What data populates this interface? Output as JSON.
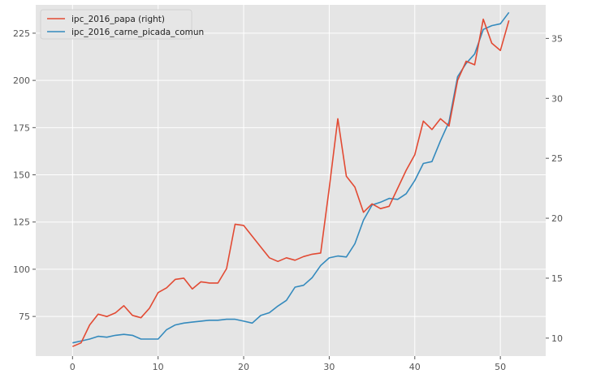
{
  "chart_data": {
    "type": "line",
    "title": "",
    "xlabel": "",
    "ylabel": "",
    "ylabel_right": "",
    "grid": true,
    "legend_position": "top-left",
    "x": [
      0,
      1,
      2,
      3,
      4,
      5,
      6,
      7,
      8,
      9,
      10,
      11,
      12,
      13,
      14,
      15,
      16,
      17,
      18,
      19,
      20,
      21,
      22,
      23,
      24,
      25,
      26,
      27,
      28,
      29,
      30,
      31,
      32,
      33,
      34,
      35,
      36,
      37,
      38,
      39,
      40,
      41,
      42,
      43,
      44,
      45,
      46,
      47,
      48,
      49,
      50,
      51
    ],
    "xlim": [
      -4.3,
      55.3
    ],
    "xticks": [
      0,
      10,
      20,
      30,
      40,
      50
    ],
    "ylim_left": [
      54,
      240
    ],
    "yticks_left": [
      75,
      100,
      125,
      150,
      175,
      200,
      225
    ],
    "ylim_right": [
      8.5,
      37.8
    ],
    "yticks_right": [
      10,
      15,
      20,
      25,
      30,
      35
    ],
    "series": [
      {
        "name": "ipc_2016_papa (right)",
        "axis": "right",
        "color": "#E24A33",
        "values": [
          9.3,
          9.6,
          11.1,
          12.0,
          11.8,
          12.1,
          12.7,
          11.9,
          11.7,
          12.5,
          13.8,
          14.2,
          14.9,
          15.0,
          14.1,
          14.7,
          14.6,
          14.6,
          15.8,
          19.5,
          19.4,
          18.5,
          17.6,
          16.7,
          16.4,
          16.7,
          16.5,
          16.8,
          17.0,
          17.1,
          22.5,
          28.3,
          23.5,
          22.6,
          20.5,
          21.2,
          20.8,
          21.0,
          22.5,
          24.0,
          25.3,
          28.1,
          27.4,
          28.3,
          27.7,
          31.5,
          33.1,
          32.8,
          36.6,
          34.6,
          34.0,
          36.5
        ]
      },
      {
        "name": "ipc_2016_carne_picada_comun",
        "axis": "left",
        "color": "#348ABD",
        "values": [
          61,
          62,
          63,
          64.5,
          64,
          65,
          65.5,
          65,
          63,
          63,
          63,
          68,
          70.5,
          71.5,
          72,
          72.5,
          73,
          73,
          73.5,
          73.5,
          72.5,
          71.5,
          75.5,
          77,
          80.5,
          83.5,
          90.5,
          91.5,
          95.5,
          102,
          106,
          107,
          106.5,
          113.5,
          126,
          134,
          135.5,
          137.5,
          137,
          140,
          147,
          156,
          157,
          168,
          178,
          202,
          209,
          214,
          227,
          229,
          230,
          236
        ]
      }
    ]
  }
}
